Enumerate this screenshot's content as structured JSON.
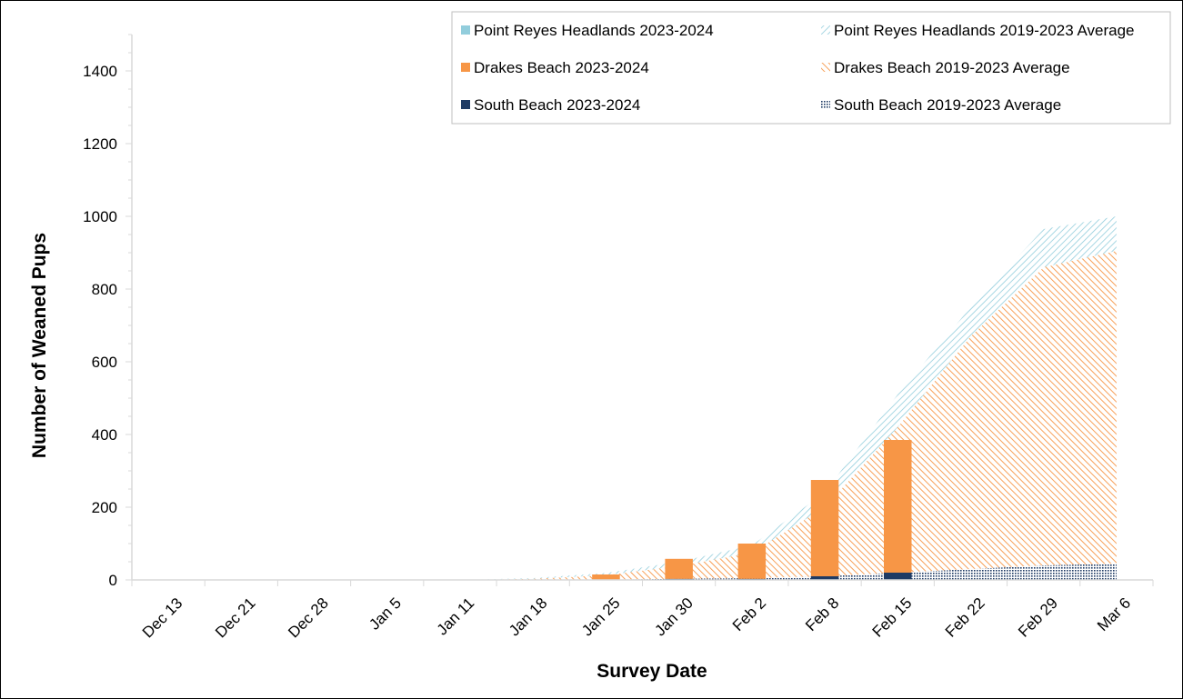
{
  "chart_data": {
    "type": "area",
    "title": "",
    "xlabel": "Survey Date",
    "ylabel": "Number of  Weaned Pups",
    "ylim": [
      0,
      1500
    ],
    "ytick_values": [
      0,
      200,
      400,
      600,
      800,
      1000,
      1200,
      1400
    ],
    "ytick_labels": [
      "0",
      "200",
      "400",
      "600",
      "800",
      "1000",
      "1200",
      "1400"
    ],
    "categories": [
      "Dec 13",
      "Dec 21",
      "Dec 28",
      "Jan 5",
      "Jan 11",
      "Jan 18",
      "Jan 25",
      "Jan 30",
      "Feb 2",
      "Feb 8",
      "Feb 15",
      "Feb 22",
      "Feb 29",
      "Mar 6"
    ],
    "stacked": true,
    "grid": false,
    "legend_position": "top-right",
    "average_series": [
      {
        "name": "South Beach 2019-2023 Average",
        "color": "#1f3b64",
        "pattern": "dots",
        "values": [
          0,
          0,
          0,
          0,
          0,
          0,
          1,
          3,
          5,
          10,
          20,
          30,
          40,
          45
        ]
      },
      {
        "name": "Drakes Beach 2019-2023 Average",
        "color": "#f79646",
        "pattern": "diagonal",
        "values": [
          0,
          0,
          0,
          0,
          0,
          3,
          12,
          35,
          70,
          190,
          400,
          640,
          820,
          860
        ]
      },
      {
        "name": "Point Reyes Headlands 2019-2023 Average",
        "color": "#92cddc",
        "pattern": "cross-diagonal",
        "values": [
          0,
          0,
          0,
          0,
          0,
          2,
          6,
          12,
          20,
          40,
          90,
          80,
          105,
          95
        ]
      }
    ],
    "season_series": [
      {
        "name": "South Beach 2023-2024",
        "color": "#1f3b64",
        "values": [
          null,
          null,
          null,
          null,
          null,
          null,
          0,
          3,
          3,
          10,
          20,
          null,
          null,
          null
        ]
      },
      {
        "name": "Drakes Beach 2023-2024",
        "color": "#f79646",
        "values": [
          null,
          null,
          null,
          null,
          null,
          null,
          15,
          55,
          97,
          265,
          365,
          null,
          null,
          null
        ]
      },
      {
        "name": "Point Reyes Headlands 2023-2024",
        "color": "#92cddc",
        "values": [
          null,
          null,
          null,
          null,
          null,
          null,
          0,
          0,
          0,
          0,
          0,
          null,
          null,
          null
        ]
      }
    ],
    "legend": [
      [
        "Point Reyes Headlands 2023-2024",
        "Point Reyes Headlands 2019-2023 Average"
      ],
      [
        "Drakes Beach 2023-2024",
        "Drakes Beach 2019-2023 Average"
      ],
      [
        "South Beach 2023-2024",
        "South Beach 2019-2023 Average"
      ]
    ]
  }
}
